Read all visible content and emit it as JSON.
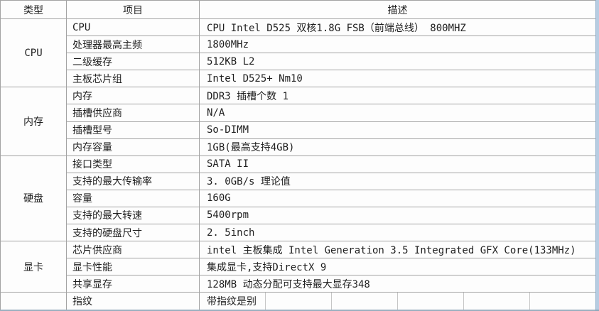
{
  "colors": {
    "grid_border": "#a3a3a3",
    "light_border": "#c6c6c6",
    "right_strip_blue": "#b7cce2",
    "bottom_edge_blue": "#8aa2b5",
    "background": "#fdfdfd",
    "text": "#1f1f1f"
  },
  "table": {
    "headers": {
      "type": "类型",
      "item": "项目",
      "description": "描述"
    },
    "sections": [
      {
        "label": "CPU",
        "rows": [
          {
            "item": "CPU",
            "description": "CPU Intel D525 双核1.8G FSB（前端总线） 800MHZ"
          },
          {
            "item": "处理器最高主频",
            "description": "1800MHz"
          },
          {
            "item": "二级缓存",
            "description": "512KB L2"
          },
          {
            "item": "主板芯片组",
            "description": "Intel D525+ Nm10"
          }
        ]
      },
      {
        "label": "内存",
        "rows": [
          {
            "item": "内存",
            "description": "DDR3 插槽个数 1"
          },
          {
            "item": "插槽供应商",
            "description": "N/A"
          },
          {
            "item": "插槽型号",
            "description": "So-DIMM"
          },
          {
            "item": "内存容量",
            "description": "1GB(最高支持4GB)"
          }
        ]
      },
      {
        "label": "硬盘",
        "rows": [
          {
            "item": "接口类型",
            "description": "SATA II"
          },
          {
            "item": "支持的最大传输率",
            "description": "3. 0GB/s 理论值"
          },
          {
            "item": "容量",
            "description": "160G"
          },
          {
            "item": "支持的最大转速",
            "description": "5400rpm"
          },
          {
            "item": "支持的硬盘尺寸",
            "description": "2. 5inch"
          }
        ]
      },
      {
        "label": "显卡",
        "rows": [
          {
            "item": "芯片供应商",
            "description": "intel 主板集成 Intel Generation 3.5 Integrated GFX Core(133MHz)"
          },
          {
            "item": "显卡性能",
            "description": "集成显卡,支持DirectX 9"
          },
          {
            "item": "共享显存",
            "description": "128MB 动态分配可支持最大显存348"
          }
        ]
      }
    ],
    "footer_row": {
      "item": "指纹",
      "description": "带指纹是别"
    }
  }
}
